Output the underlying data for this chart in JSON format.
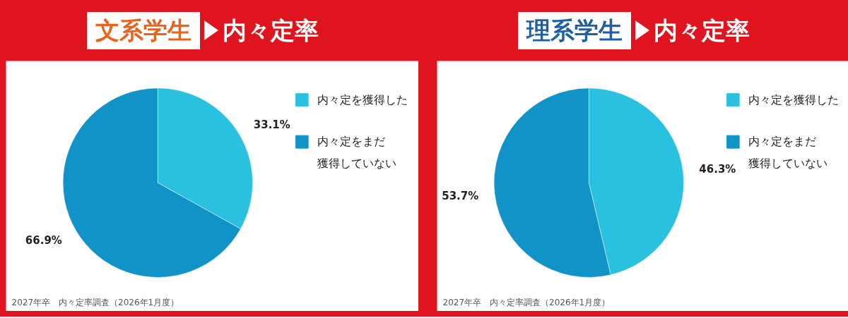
{
  "chart_data": [
    {
      "type": "pie",
      "title": "文系学生",
      "subtitle": "内々定率",
      "categories": [
        "内々定を獲得した",
        "内々定をまだ獲得していない"
      ],
      "values": [
        33.1,
        66.9
      ],
      "value_labels": [
        "33.1%",
        "66.9%"
      ],
      "colors": [
        "#2ac0e0",
        "#1193c8"
      ],
      "legend": "top right",
      "annotations": [
        "2027年卒　内々定率調査（2026年1月度）"
      ]
    },
    {
      "type": "pie",
      "title": "理系学生",
      "subtitle": "内々定率",
      "categories": [
        "内々定を獲得した",
        "内々定をまだ獲得していない"
      ],
      "values": [
        46.3,
        53.7
      ],
      "value_labels": [
        "46.3%",
        "53.7%"
      ],
      "colors": [
        "#2ac0e0",
        "#1193c8"
      ],
      "legend": "top right",
      "annotations": [
        "2027年卒　内々定率調査（2026年1月度）"
      ]
    }
  ]
}
